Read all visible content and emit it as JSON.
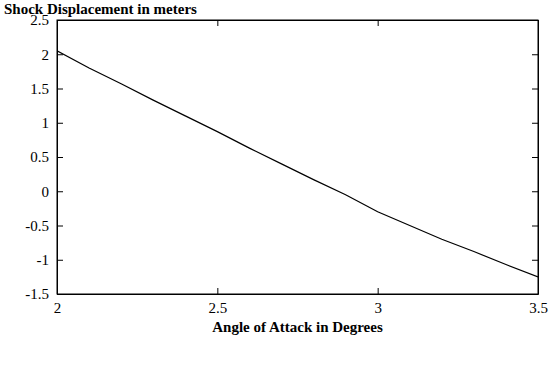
{
  "chart_data": {
    "type": "line",
    "title": "Shock Displacement in meters",
    "x_label": "Angle of Attack in Degrees",
    "x": [
      2.0,
      2.1,
      2.2,
      2.3,
      2.4,
      2.5,
      2.6,
      2.7,
      2.8,
      2.9,
      3.0,
      3.1,
      3.2,
      3.3,
      3.4,
      3.5
    ],
    "values": [
      2.05,
      1.8,
      1.57,
      1.33,
      1.1,
      0.87,
      0.63,
      0.4,
      0.17,
      -0.05,
      -0.3,
      -0.5,
      -0.7,
      -0.88,
      -1.07,
      -1.25
    ],
    "color": "#000000",
    "xlim": [
      2,
      3.5
    ],
    "xticks": [
      2,
      2.5,
      3,
      3.5
    ],
    "ylim": [
      -1.5,
      2.5
    ],
    "yticks": [
      -1.5,
      -1,
      -0.5,
      0,
      0.5,
      1,
      1.5,
      2,
      2.5
    ],
    "grid": false
  }
}
